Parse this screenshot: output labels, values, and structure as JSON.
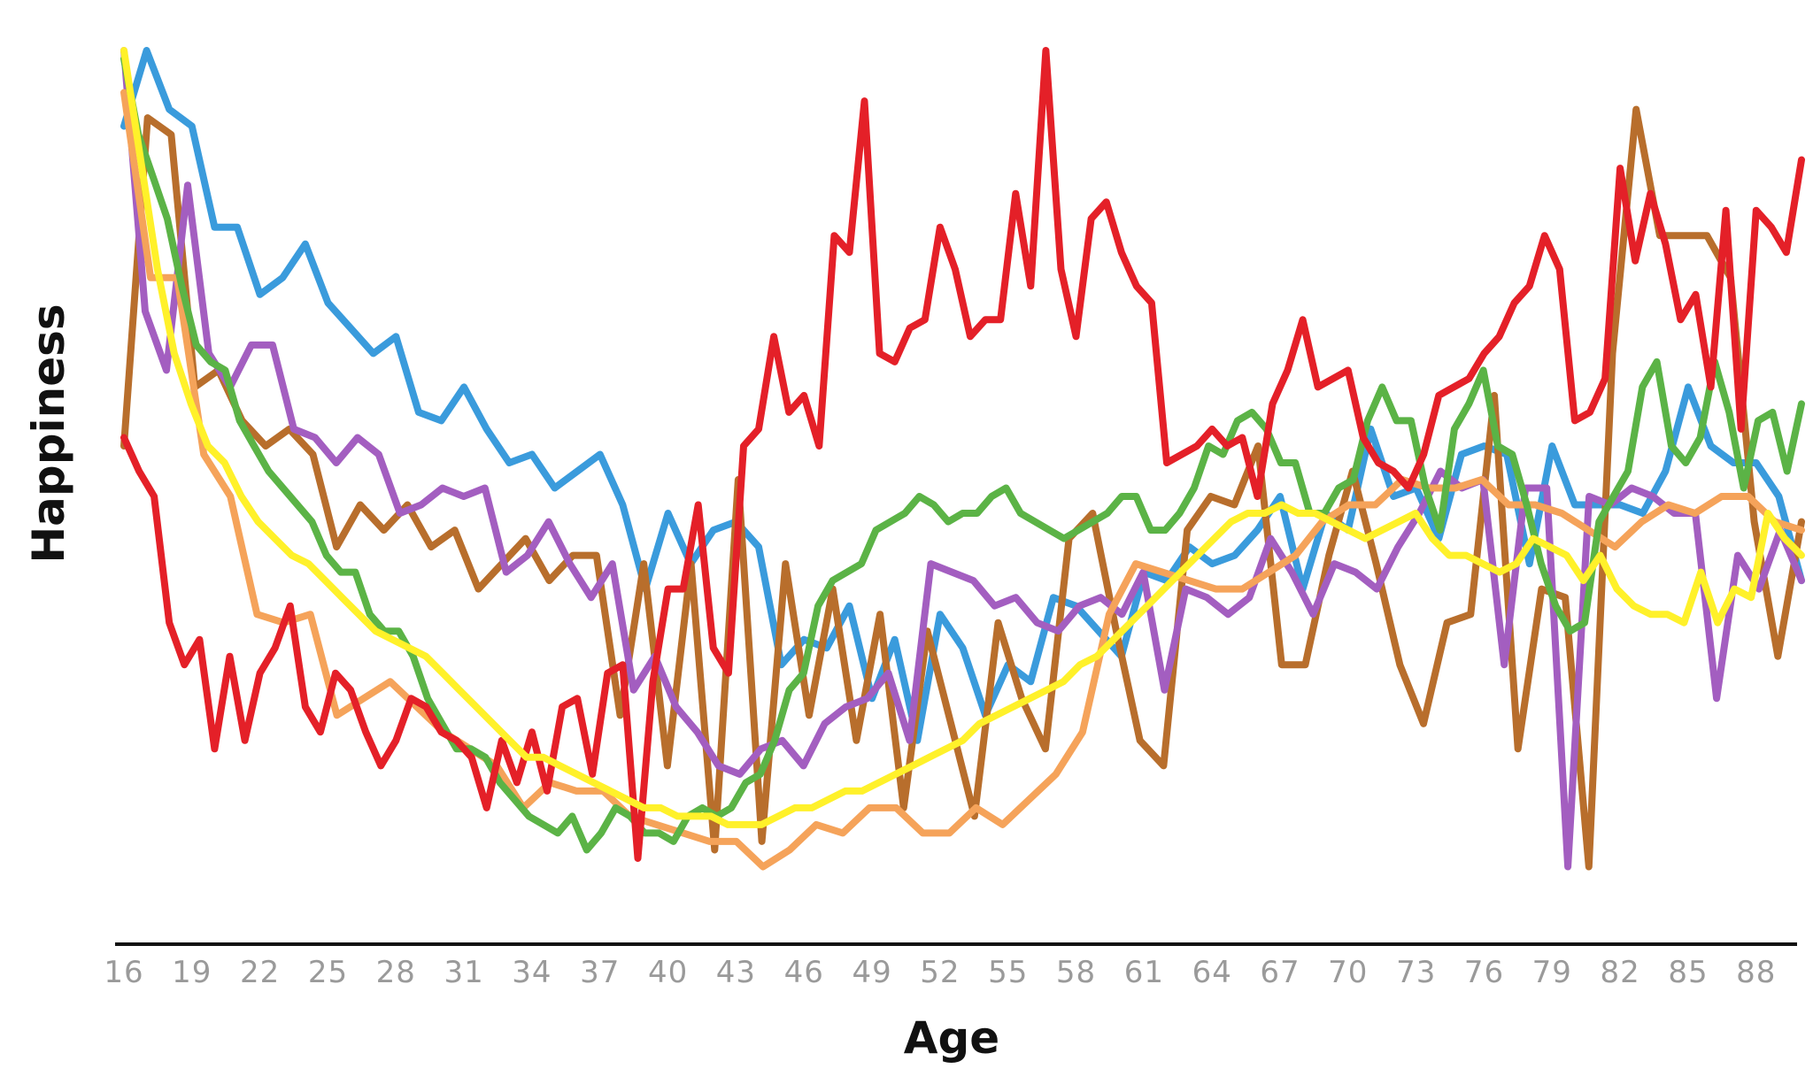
{
  "chart_data": {
    "type": "line",
    "xlabel": "Age",
    "ylabel": "Happiness",
    "xlim": [
      16,
      90
    ],
    "ylim": [
      0,
      100
    ],
    "grid": false,
    "legend": "none",
    "x_tick_labels": [
      "16",
      "19",
      "22",
      "25",
      "28",
      "31",
      "34",
      "37",
      "40",
      "43",
      "46",
      "49",
      "52",
      "55",
      "58",
      "61",
      "64",
      "67",
      "70",
      "73",
      "76",
      "79",
      "82",
      "85",
      "88"
    ],
    "x_start": 16,
    "series": [
      {
        "color": "#3a9bdc",
        "values": [
          91,
          100,
          93,
          91,
          79,
          79,
          71,
          73,
          77,
          70,
          67,
          64,
          66,
          57,
          56,
          60,
          55,
          51,
          52,
          48,
          50,
          52,
          46,
          36,
          45,
          39,
          43,
          44,
          41,
          27,
          30,
          29,
          34,
          23,
          30,
          18,
          33,
          29,
          21,
          27,
          25,
          35,
          34,
          31,
          28,
          38,
          37,
          41,
          39,
          40,
          43,
          47,
          36,
          45,
          43,
          55,
          47,
          48,
          42,
          52,
          53,
          52,
          39,
          53,
          46,
          46,
          46,
          45,
          50,
          60,
          53,
          51,
          51,
          47,
          37
        ]
      },
      {
        "color": "#b86e2c",
        "values": [
          53,
          92,
          90,
          60,
          62,
          56,
          53,
          55,
          52,
          41,
          46,
          43,
          46,
          41,
          43,
          36,
          39,
          42,
          37,
          40,
          40,
          21,
          39,
          15,
          39,
          5,
          49,
          6,
          39,
          21,
          36,
          18,
          33,
          10,
          31,
          20,
          9,
          32,
          23,
          17,
          42,
          45,
          31,
          18,
          15,
          43,
          47,
          46,
          53,
          27,
          27,
          40,
          50,
          39,
          27,
          20,
          32,
          33,
          59,
          17,
          36,
          35,
          3,
          64,
          93,
          78,
          78,
          78,
          73,
          44,
          28,
          44
        ]
      },
      {
        "color": "#a35ec0",
        "values": [
          100,
          69,
          62,
          84,
          64,
          60,
          65,
          65,
          55,
          54,
          51,
          54,
          52,
          45,
          46,
          48,
          47,
          48,
          38,
          40,
          44,
          39,
          35,
          39,
          24,
          28,
          22,
          19,
          15,
          14,
          17,
          18,
          15,
          20,
          22,
          23,
          26,
          18,
          39,
          38,
          37,
          34,
          35,
          32,
          31,
          34,
          35,
          33,
          38,
          24,
          36,
          35,
          33,
          35,
          42,
          38,
          33,
          39,
          38,
          36,
          41,
          45,
          50,
          48,
          49,
          27,
          48,
          48,
          3,
          47,
          46,
          48,
          47,
          45,
          45,
          23,
          40,
          36,
          43,
          37
        ]
      },
      {
        "color": "#f5a35a",
        "values": [
          95,
          73,
          73,
          52,
          47,
          33,
          32,
          33,
          21,
          23,
          25,
          22,
          19,
          17,
          15,
          10,
          13,
          12,
          12,
          9,
          8,
          7,
          6,
          6,
          3,
          5,
          8,
          7,
          10,
          10,
          7,
          7,
          10,
          8,
          11,
          14,
          19,
          33,
          39,
          38,
          37,
          36,
          36,
          38,
          40,
          44,
          46,
          46,
          49,
          48,
          48,
          49,
          46,
          46,
          45,
          43,
          41,
          44,
          46,
          45,
          47,
          47,
          44,
          43
        ]
      },
      {
        "color": "#5bb346",
        "values": [
          99,
          90,
          85,
          80,
          72,
          65,
          63,
          62,
          56,
          53,
          50,
          48,
          46,
          44,
          40,
          38,
          38,
          33,
          31,
          31,
          28,
          23,
          20,
          17,
          17,
          16,
          13,
          11,
          9,
          8,
          7,
          9,
          5,
          7,
          10,
          9,
          7,
          7,
          6,
          9,
          10,
          9,
          10,
          13,
          14,
          18,
          24,
          26,
          34,
          37,
          38,
          39,
          43,
          44,
          45,
          47,
          46,
          44,
          45,
          45,
          47,
          48,
          45,
          44,
          43,
          42,
          43,
          44,
          45,
          47,
          47,
          43,
          43,
          45,
          48,
          53,
          52,
          56,
          57,
          55,
          51,
          51,
          45,
          45,
          48,
          49,
          56,
          60,
          56,
          56,
          48,
          43,
          55,
          58,
          62,
          53,
          52,
          46,
          39,
          34,
          31,
          32,
          44,
          47,
          50,
          60,
          63,
          53,
          51,
          54,
          63,
          57,
          48,
          56,
          57,
          50,
          58
        ]
      },
      {
        "color": "#e42028",
        "values": [
          54,
          50,
          47,
          32,
          27,
          30,
          17,
          28,
          18,
          26,
          29,
          34,
          22,
          19,
          26,
          24,
          19,
          15,
          18,
          23,
          22,
          19,
          18,
          16,
          10,
          18,
          13,
          19,
          12,
          22,
          23,
          14,
          26,
          27,
          4,
          25,
          36,
          36,
          46,
          29,
          26,
          53,
          55,
          66,
          57,
          59,
          53,
          78,
          76,
          94,
          64,
          63,
          67,
          68,
          79,
          74,
          66,
          68,
          68,
          83,
          72,
          100,
          74,
          66,
          80,
          82,
          76,
          72,
          70,
          51,
          52,
          53,
          55,
          53,
          54,
          47,
          58,
          62,
          68,
          60,
          61,
          62,
          54,
          51,
          50,
          48,
          52,
          59,
          60,
          61,
          64,
          66,
          70,
          72,
          78,
          74,
          56,
          57,
          61,
          86,
          75,
          83,
          77,
          68,
          71,
          60,
          81,
          55,
          81,
          79,
          76,
          87
        ]
      },
      {
        "color": "#fff12a",
        "values": [
          100,
          87,
          74,
          64,
          58,
          53,
          51,
          47,
          44,
          42,
          40,
          39,
          37,
          35,
          33,
          31,
          30,
          29,
          28,
          26,
          24,
          22,
          20,
          18,
          16,
          16,
          15,
          14,
          13,
          12,
          11,
          10,
          10,
          9,
          9,
          9,
          8,
          8,
          8,
          9,
          10,
          10,
          11,
          12,
          12,
          13,
          14,
          15,
          16,
          17,
          18,
          20,
          21,
          22,
          23,
          24,
          25,
          27,
          28,
          30,
          32,
          34,
          36,
          38,
          40,
          42,
          44,
          45,
          45,
          46,
          45,
          45,
          44,
          43,
          42,
          43,
          44,
          45,
          42,
          40,
          40,
          39,
          38,
          39,
          42,
          41,
          40,
          37,
          40,
          36,
          34,
          33,
          33,
          32,
          38,
          32,
          36,
          35,
          45,
          42,
          40
        ]
      }
    ]
  }
}
